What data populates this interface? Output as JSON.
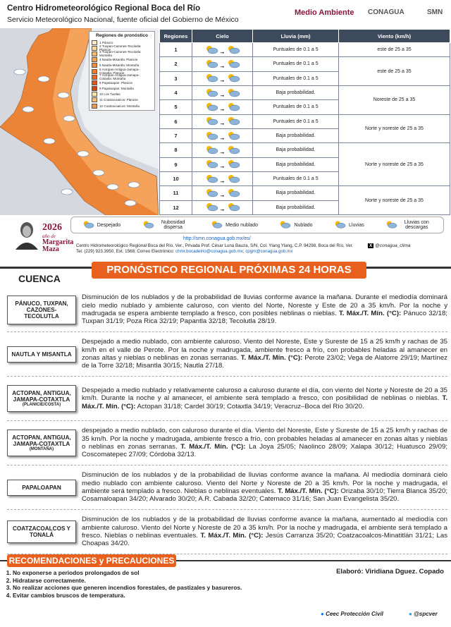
{
  "header": {
    "title": "Centro Hidrometeorológico Regional Boca del Río",
    "subtitle": "Servicio Meteorológico Nacional, fuente oficial del Gobierno de México",
    "logos": [
      "Medio Ambiente",
      "CONAGUA",
      "SMN"
    ]
  },
  "map": {
    "legend_title": "Regiones de pronóstico",
    "regions": [
      "1 Pánuco",
      "2 Tuxpan-Cazones-Tecolutla: Planicie",
      "3 Tuxpan-Cazones-Tecolutla: Montaña",
      "4 Nautla-Misantla: Planicie",
      "5 Nautla-Misantla: Montaña",
      "6 Actopan-Antigua-Jamapa-Cotaxtla: Planicie",
      "7 Actopan-Antigua-Jamapa-Cotaxtla: Montaña",
      "8 Papaloapan: Planicie",
      "9 Papaloapan: Montaña",
      "10 Los Tuxtlas",
      "11 Coatzacoalcos: Planicie",
      "12 Coatzacoalcos: Montaña"
    ]
  },
  "table": {
    "headers": [
      "Regiones",
      "Cielo",
      "Lluvia (mm)",
      "Viento (km/h)"
    ],
    "rows": [
      {
        "region": "1",
        "rain": "Puntuales de 0.1 a 5",
        "wind": "este de 25 a 35"
      },
      {
        "region": "2",
        "rain": "Puntuales de 0.1 a 5",
        "wind": "este de 25 a 35"
      },
      {
        "region": "3",
        "rain": "Puntuales de 0.1 a 5",
        "wind": null
      },
      {
        "region": "4",
        "rain": "Baja probabilidad.",
        "wind": "Noreste de 25 a 35"
      },
      {
        "region": "5",
        "rain": "Puntuales de 0.1 a 5",
        "wind": null
      },
      {
        "region": "6",
        "rain": "Puntuales de 0.1 a 5",
        "wind": "Norte y noreste de 25 a 35"
      },
      {
        "region": "7",
        "rain": "Baja probabilidad.",
        "wind": null
      },
      {
        "region": "8",
        "rain": "Baja probabilidad.",
        "wind": "Norte y noreste de 25 a 35"
      },
      {
        "region": "9",
        "rain": "Baja probabilidad.",
        "wind": null
      },
      {
        "region": "10",
        "rain": "Puntuales de 0.1 a 5",
        "wind": null
      },
      {
        "region": "11",
        "rain": "Baja probabilidad.",
        "wind": "Norte y noreste de 25 a 35"
      },
      {
        "region": "12",
        "rain": "Baja probabilidad.",
        "wind": null
      }
    ]
  },
  "sky_legend": [
    "Despejado",
    "Nubosidad dispersa",
    "Medio nublado",
    "Nublado",
    "Lluvias",
    "Lluvias con descargas"
  ],
  "footer": {
    "year": "2026",
    "year_caption": "año de",
    "year_name": "Margarita Maza",
    "url": "http://smn.conagua.gob.mx/es/",
    "address": "Centro Hidrometeorológico Regional Boca del Río, Ver., Privada Prof. César Luna Bauza, S/N, Col. Ylang Ylang, C.P. 94298, Boca del Río, Ver.",
    "phone": "Tel. (229) 923.3950, Ext. 1568; Correo Electrónico:",
    "emails": [
      "chmr.bocadelrio@conagua.gob.mx",
      "cpgm@conagua.gob.mx"
    ],
    "social": "@conagua_clima"
  },
  "forecast": {
    "title": "PRONÓSTICO REGIONAL PRÓXIMAS 24 HORAS",
    "column": "CUENCA",
    "temp_label": "T. Máx./T. Mín. (°C):",
    "regions": [
      {
        "name": "PÁNUCO, TUXPAN, CAZONES-TECOLUTLA",
        "text": "Disminución de los nublados y de la probabilidad de lluvias conforme avance la mañana. Durante el mediodía dominará cielo medio nublado y ambiente caluroso, con viento del Norte, Noreste y Este de 20 a 35 km/h. Por la noche y madrugada se espera ambiente templado a fresco, con posibles neblinas o nieblas.",
        "temps": "Pánuco 32/18; Tuxpan 31/19; Poza Rica 32/19; Papantla 32/18; Tecolutla 28/19."
      },
      {
        "name": "NAUTLA Y MISANTLA",
        "text": "Despejado a medio nublado, con ambiente caluroso. Viento del Noreste, Este y Sureste de 15 a 25 km/h y rachas de 35 km/h en el valle de Perote. Por la noche y madrugada, ambiente fresco a frío, con probables heladas al amanecer en zonas altas y nieblas o neblinas en zonas serranas.",
        "temps": "Perote 23/02; Vega de Alatorre 29/19; Martínez de la Torre 32/18; Misantla 30/15; Nautla 27/18."
      },
      {
        "name": "ACTOPAN, ANTIGUA, JAMAPA-COTAXTLA",
        "sub": "(PLANICIE/COSTA)",
        "text": "Despejado a medio nublado y relativamente caluroso a caluroso durante el día, con viento del Norte y Noreste de 20 a 35 km/h. Durante la noche y al amanecer, el ambiente será templado a fresco, con posibilidad de neblinas o nieblas.",
        "temps": "Actopan 31/18; Cardel 30/19; Cotaxtla 34/19; Veracruz–Boca del Río 30/20."
      },
      {
        "name": "ACTOPAN, ANTIGUA, JAMAPA-COTAXTLA",
        "sub": "(MONTAÑA)",
        "text": "despejado a medio nublado, con caluroso durante el día. Viento del Noreste, Este y Sureste de 15 a 25 km/h y rachas de 35 km/h. Por la noche y madrugada, ambiente fresco a frío, con probables heladas al amanecer en zonas altas y nieblas o neblinas en zonas serranas.",
        "temps": "La Joya 25/05; Naolinco 28/09; Xalapa 30/12; Huatusco 29/09; Coscomatepec 27/09; Córdoba 32/13."
      },
      {
        "name": "PAPALOAPAN",
        "text": "Disminución de los nublados y de la probabilidad de lluvias conforme avance la mañana. Al mediodía dominará cielo medio nublado con ambiente caluroso. Viento del Norte y Noreste de 20 a 35 km/h. Por la noche y madrugada, el ambiente será templado a fresco. Nieblas o neblinas eventuales.",
        "temps": "Orizaba 30/10; Tierra Blanca 35/20; Cosamaloapan 34/20; Alvarado 30/20; A.R. Cabada 32/20; Catemaco 31/16; San Juan Evangelista 35/20."
      },
      {
        "name": "COATZACOALCOS Y TONALÁ",
        "text": "Disminución de los nublados y de la probabilidad de lluvias conforme avance la mañana, aumentado al mediodía con ambiente caluroso. Viento del Norte y Noreste de 20 a 35 km/h. Por la noche y madrugada, el ambiente será templado a fresco. Nieblas o neblinas eventuales.",
        "temps": "Jesús Carranza 35/20; Coatzacoalcos-Minatitlán 31/21; Las Choapas 34/20."
      }
    ]
  },
  "recommendations": {
    "title": "RECOMENDACIONES y PRECAUCIONES",
    "items": [
      "No exponerse a periodos prolongados de sol",
      "Hidratarse correctamente.",
      "No realizar acciones que generen incendios forestales, de pastizales y basureros.",
      "Evitar cambios bruscos de temperatura."
    ],
    "author": "Elaboró: Viridiana Dguez. Copado",
    "social": [
      "Ceec Protección Civil",
      "@spcver"
    ]
  }
}
